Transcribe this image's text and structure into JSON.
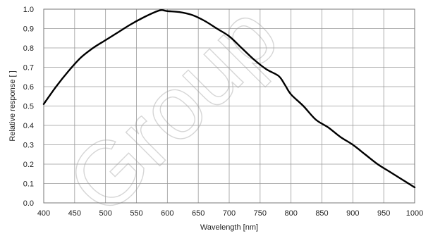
{
  "chart_data": {
    "type": "line",
    "title": "",
    "xlabel": "Wavelength [nm]",
    "ylabel": "Relative response [ ]",
    "xlim": [
      400,
      1000
    ],
    "ylim": [
      0.0,
      1.0
    ],
    "x_ticks": [
      "400",
      "450",
      "500",
      "550",
      "600",
      "650",
      "700",
      "750",
      "800",
      "850",
      "900",
      "950",
      "1000"
    ],
    "y_ticks": [
      "0.0",
      "0.1",
      "0.2",
      "0.3",
      "0.4",
      "0.5",
      "0.6",
      "0.7",
      "0.8",
      "0.9",
      "1.0"
    ],
    "grid": true,
    "series": [
      {
        "x": [
          400,
          420,
          440,
          460,
          480,
          500,
          520,
          540,
          560,
          580,
          590,
          600,
          620,
          640,
          660,
          680,
          700,
          720,
          740,
          760,
          780,
          790,
          800,
          820,
          840,
          860,
          880,
          900,
          920,
          940,
          960,
          980,
          1000
        ],
        "y": [
          0.51,
          0.6,
          0.68,
          0.75,
          0.8,
          0.84,
          0.88,
          0.92,
          0.955,
          0.985,
          0.995,
          0.99,
          0.985,
          0.97,
          0.94,
          0.9,
          0.86,
          0.8,
          0.74,
          0.69,
          0.655,
          0.61,
          0.56,
          0.5,
          0.43,
          0.39,
          0.34,
          0.3,
          0.25,
          0.2,
          0.16,
          0.12,
          0.08
        ],
        "color": "#000000"
      }
    ]
  },
  "watermark": {
    "text": "Group",
    "color": "#c9c9c9"
  }
}
